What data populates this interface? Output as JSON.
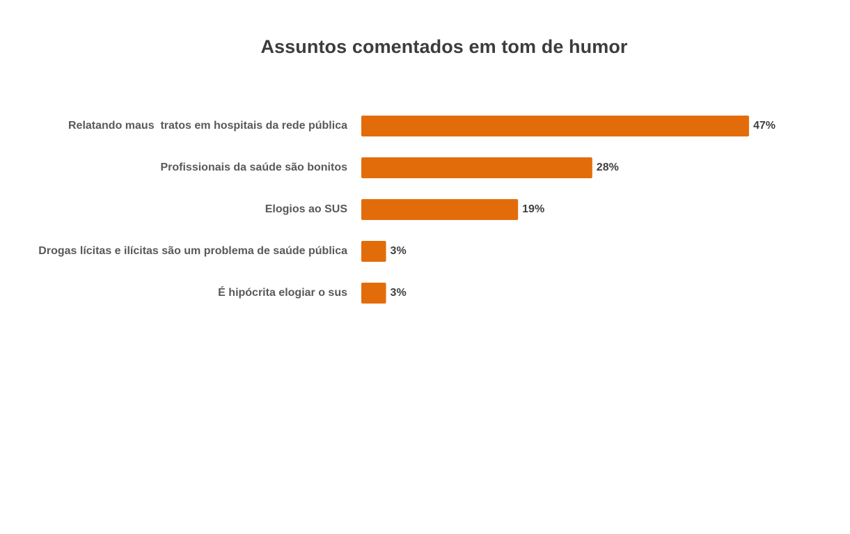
{
  "chart_data": {
    "type": "bar",
    "orientation": "horizontal",
    "title": "Assuntos comentados em tom de humor",
    "categories": [
      "Relatando maus  tratos em hospitais da rede pública",
      "Profissionais da saúde são bonitos",
      "Elogios ao SUS",
      "Drogas lícitas e ilícitas são um problema de saúde pública",
      "É hipócrita elogiar o sus"
    ],
    "values": [
      47,
      28,
      19,
      3,
      3
    ],
    "value_labels": [
      "47%",
      "28%",
      "19%",
      "3%",
      "3%"
    ],
    "unit": "%",
    "xlim": [
      0,
      50
    ],
    "grid": false,
    "legend": "none",
    "bar_color": "#E36C0A"
  }
}
